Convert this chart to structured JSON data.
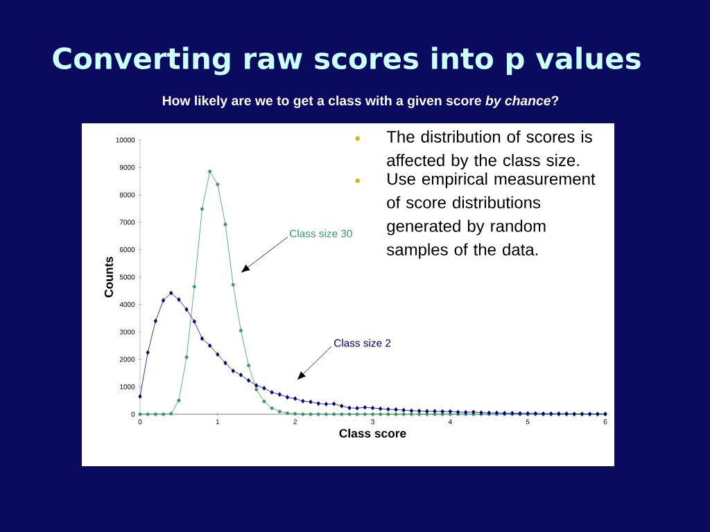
{
  "chart_data": {
    "type": "line",
    "title": "Converting raw scores into p values",
    "subtitle": "How likely are we to get a class with a given score *by chance*?",
    "xlabel": "Class score",
    "ylabel": "Counts",
    "annotations": [
      "The distribution of scores is affected by the class size.",
      "Use empirical measurement of score distributions generated by random samples of the data."
    ],
    "x": [
      0,
      0.1,
      0.2,
      0.3,
      0.4,
      0.5,
      0.6,
      0.7,
      0.8,
      0.9,
      1,
      1.1,
      1.2,
      1.3,
      1.4,
      1.5,
      1.6,
      1.7,
      1.8,
      1.9,
      2,
      2.1,
      2.2,
      2.3,
      2.4,
      2.5,
      2.6,
      2.7,
      2.8,
      2.9,
      3,
      3.1,
      3.2,
      3.3,
      3.4,
      3.5,
      3.6,
      3.7,
      3.8,
      3.9,
      4,
      4.1,
      4.2,
      4.3,
      4.4,
      4.5,
      4.6,
      4.7,
      4.8,
      4.9,
      5,
      5.1,
      5.2,
      5.3,
      5.4,
      5.5,
      5.6,
      5.7,
      5.8,
      5.9,
      6
    ],
    "series": [
      {
        "name": "Class size 30",
        "color": "#339966",
        "marker": "circle",
        "values": [
          0,
          0,
          0,
          0,
          20,
          500,
          2080,
          4650,
          7480,
          8850,
          8380,
          6920,
          4720,
          3050,
          1780,
          900,
          470,
          220,
          100,
          40,
          20,
          0,
          0,
          0,
          0,
          0,
          0,
          0,
          0,
          0,
          0,
          0,
          0,
          0,
          0,
          0,
          0,
          0,
          0,
          0,
          0,
          0,
          0,
          0,
          0,
          0,
          0,
          0,
          0,
          0,
          0,
          0,
          0,
          0,
          0,
          0,
          0,
          0,
          0,
          0,
          0
        ]
      },
      {
        "name": "Class size 2",
        "color": "#000080",
        "marker": "diamond",
        "values": [
          650,
          2250,
          3400,
          4150,
          4420,
          4180,
          3820,
          3380,
          2760,
          2500,
          2180,
          1870,
          1580,
          1430,
          1230,
          1050,
          950,
          800,
          720,
          620,
          570,
          480,
          450,
          390,
          370,
          380,
          300,
          230,
          220,
          250,
          230,
          200,
          180,
          170,
          150,
          130,
          120,
          110,
          110,
          100,
          100,
          80,
          70,
          80,
          60,
          50,
          50,
          40,
          40,
          30,
          30,
          30,
          20,
          20,
          20,
          20,
          10,
          10,
          10,
          10,
          10
        ]
      }
    ],
    "xlim": [
      0,
      6
    ],
    "ylim": [
      0,
      10000
    ],
    "xticks": [
      0,
      1,
      2,
      3,
      4,
      5,
      6
    ],
    "yticks": [
      0,
      1000,
      2000,
      3000,
      4000,
      5000,
      6000,
      7000,
      8000,
      9000,
      10000
    ],
    "grid": false,
    "legend": false
  }
}
